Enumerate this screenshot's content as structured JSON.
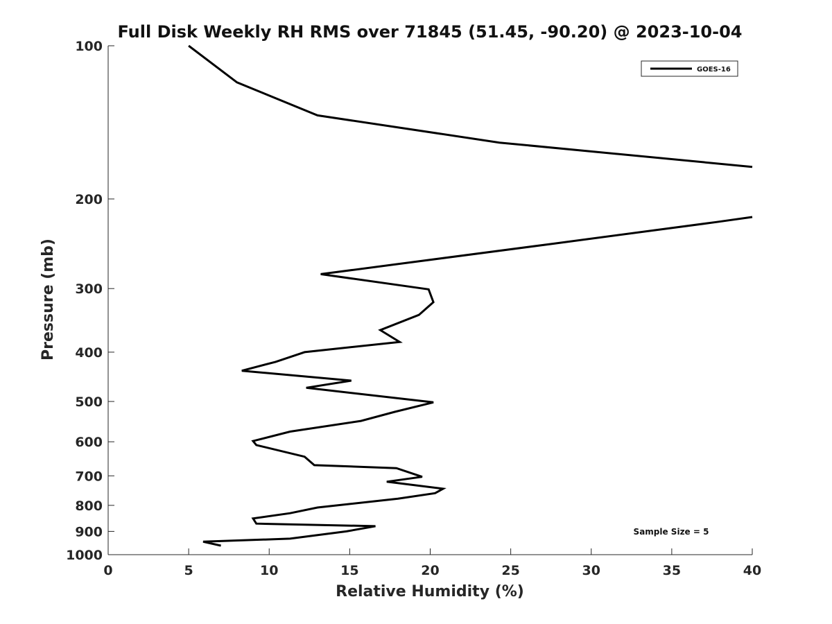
{
  "chart_data": {
    "type": "line",
    "title": "Full Disk Weekly RH RMS over 71845 (51.45, -90.20) @ 2023-10-04",
    "xlabel": "Relative Humidity (%)",
    "ylabel": "Pressure (mb)",
    "xlim": [
      0,
      40
    ],
    "ylim": [
      100,
      1000
    ],
    "y_scale": "log",
    "y_reversed": true,
    "x_ticks": [
      "0",
      "5",
      "10",
      "15",
      "20",
      "25",
      "30",
      "35",
      "40"
    ],
    "y_ticks": [
      "100",
      "200",
      "300",
      "400",
      "500",
      "600",
      "700",
      "800",
      "900",
      "1000"
    ],
    "grid": false,
    "legend_position": "top-right",
    "annotation": "Sample Size = 5",
    "series": [
      {
        "name": "GOES-16",
        "color": "#000000",
        "x": [
          5.0,
          8.0,
          13.0,
          24.3,
          40.0
        ],
        "y": [
          100,
          118,
          137,
          155,
          173
        ]
      },
      {
        "name": "GOES-16",
        "color": "#000000",
        "x": [
          40.0,
          37.8,
          27.6,
          13.2,
          19.9,
          20.2,
          19.3,
          16.9,
          18.1,
          12.2,
          10.4,
          8.3,
          15.1,
          12.3,
          20.2,
          17.8,
          15.7,
          11.3,
          9.0,
          9.2,
          12.2,
          12.8,
          17.9,
          19.5,
          17.3,
          20.8,
          20.3,
          18.0,
          13.0,
          11.3,
          9.0,
          9.2,
          16.6,
          14.8,
          11.3,
          5.9,
          7.0
        ],
        "y": [
          217,
          222,
          245,
          281,
          301,
          319,
          338,
          362,
          382,
          400,
          418,
          435,
          455,
          470,
          502,
          524,
          546,
          573,
          598,
          609,
          642,
          667,
          676,
          703,
          719,
          742,
          757,
          776,
          808,
          829,
          849,
          869,
          879,
          900,
          930,
          943,
          960
        ]
      }
    ]
  }
}
